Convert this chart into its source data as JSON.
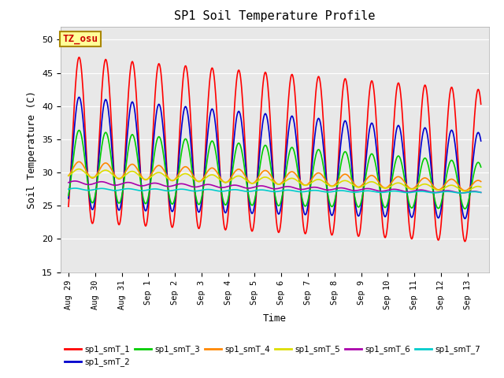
{
  "title": "SP1 Soil Temperature Profile",
  "xlabel": "Time",
  "ylabel": "Soil Temperature (C)",
  "ylim": [
    15,
    52
  ],
  "yticks": [
    15,
    20,
    25,
    30,
    35,
    40,
    45,
    50
  ],
  "annotation": "TZ_osu",
  "annotation_color": "#cc0000",
  "annotation_bg": "#ffff99",
  "annotation_border": "#aa8800",
  "plot_bg": "#e8e8e8",
  "series_colors": {
    "sp1_smT_1": "#ff0000",
    "sp1_smT_2": "#0000cc",
    "sp1_smT_3": "#00cc00",
    "sp1_smT_4": "#ff8800",
    "sp1_smT_5": "#dddd00",
    "sp1_smT_6": "#aa00aa",
    "sp1_smT_7": "#00cccc"
  },
  "x_tick_labels": [
    "Aug 29",
    "Aug 30",
    "Aug 31",
    "Sep 1",
    "Sep 2",
    "Sep 3",
    "Sep 4",
    "Sep 5",
    "Sep 6",
    "Sep 7",
    "Sep 8",
    "Sep 9",
    "Sep 10",
    "Sep 11",
    "Sep 12",
    "Sep 13"
  ],
  "legend_order": [
    "sp1_smT_1",
    "sp1_smT_2",
    "sp1_smT_3",
    "sp1_smT_4",
    "sp1_smT_5",
    "sp1_smT_6",
    "sp1_smT_7"
  ]
}
